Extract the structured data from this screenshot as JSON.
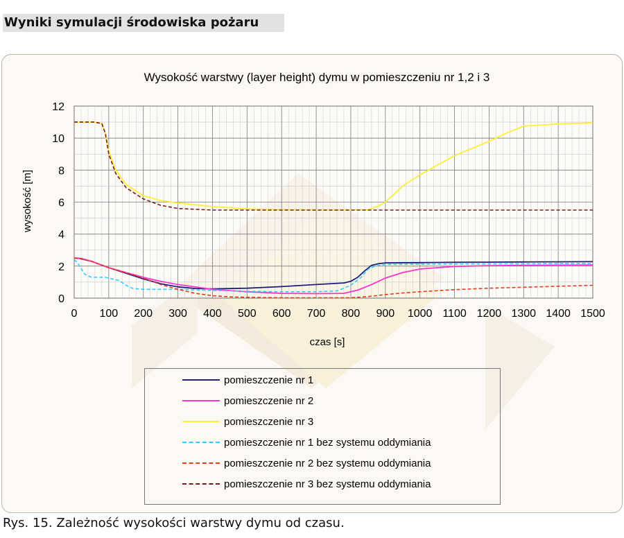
{
  "page": {
    "heading": "Wyniki symulacji środowiska pożaru",
    "caption": "Rys. 15. Zależność wysokości warstwy dymu od czasu."
  },
  "chart_data": {
    "type": "line",
    "title": "Wysokość warstwy (layer height) dymu w pomieszczeniu nr 1,2 i 3",
    "xlabel": "czas [s]",
    "ylabel": "wysokość [m]",
    "xlim": [
      0,
      1500
    ],
    "ylim": [
      0,
      12
    ],
    "xticks": [
      0,
      100,
      200,
      300,
      400,
      500,
      600,
      700,
      800,
      900,
      1000,
      1100,
      1200,
      1300,
      1400,
      1500
    ],
    "yticks": [
      0,
      2,
      4,
      6,
      8,
      10,
      12
    ],
    "grid": "on",
    "legend_placement": "bottom",
    "series": [
      {
        "name": "pomieszczenie nr 1",
        "color": "#1f1f7a",
        "dash": "solid",
        "points": [
          [
            0,
            2.5
          ],
          [
            10,
            2.5
          ],
          [
            50,
            2.3
          ],
          [
            100,
            1.9
          ],
          [
            150,
            1.55
          ],
          [
            200,
            1.2
          ],
          [
            250,
            0.9
          ],
          [
            300,
            0.7
          ],
          [
            350,
            0.6
          ],
          [
            400,
            0.58
          ],
          [
            500,
            0.62
          ],
          [
            600,
            0.72
          ],
          [
            700,
            0.85
          ],
          [
            780,
            0.95
          ],
          [
            800,
            1.05
          ],
          [
            820,
            1.3
          ],
          [
            840,
            1.7
          ],
          [
            860,
            2.05
          ],
          [
            880,
            2.15
          ],
          [
            900,
            2.2
          ],
          [
            1000,
            2.22
          ],
          [
            1100,
            2.24
          ],
          [
            1200,
            2.25
          ],
          [
            1300,
            2.26
          ],
          [
            1400,
            2.27
          ],
          [
            1500,
            2.28
          ]
        ]
      },
      {
        "name": "pomieszczenie nr 2",
        "color": "#ff33cc",
        "dash": "solid",
        "points": [
          [
            0,
            2.5
          ],
          [
            20,
            2.48
          ],
          [
            50,
            2.3
          ],
          [
            100,
            1.9
          ],
          [
            150,
            1.6
          ],
          [
            200,
            1.3
          ],
          [
            250,
            1.05
          ],
          [
            300,
            0.85
          ],
          [
            400,
            0.55
          ],
          [
            500,
            0.4
          ],
          [
            600,
            0.3
          ],
          [
            700,
            0.28
          ],
          [
            780,
            0.3
          ],
          [
            820,
            0.5
          ],
          [
            860,
            0.85
          ],
          [
            900,
            1.25
          ],
          [
            950,
            1.6
          ],
          [
            1000,
            1.82
          ],
          [
            1100,
            1.98
          ],
          [
            1200,
            2.03
          ],
          [
            1300,
            2.05
          ],
          [
            1400,
            2.06
          ],
          [
            1500,
            2.07
          ]
        ]
      },
      {
        "name": "pomieszczenie nr 3",
        "color": "#ffee33",
        "dash": "solid",
        "points": [
          [
            0,
            11
          ],
          [
            60,
            11
          ],
          [
            80,
            10.9
          ],
          [
            90,
            10.3
          ],
          [
            100,
            9.2
          ],
          [
            120,
            8.0
          ],
          [
            150,
            7.1
          ],
          [
            200,
            6.4
          ],
          [
            250,
            6.1
          ],
          [
            300,
            5.95
          ],
          [
            400,
            5.72
          ],
          [
            500,
            5.58
          ],
          [
            600,
            5.52
          ],
          [
            700,
            5.5
          ],
          [
            800,
            5.5
          ],
          [
            850,
            5.52
          ],
          [
            880,
            5.75
          ],
          [
            900,
            6.0
          ],
          [
            920,
            6.4
          ],
          [
            950,
            7.0
          ],
          [
            1000,
            7.7
          ],
          [
            1050,
            8.3
          ],
          [
            1100,
            8.9
          ],
          [
            1150,
            9.35
          ],
          [
            1200,
            9.8
          ],
          [
            1250,
            10.3
          ],
          [
            1300,
            10.75
          ],
          [
            1400,
            10.88
          ],
          [
            1500,
            10.95
          ]
        ]
      },
      {
        "name": "pomieszczenie nr 1 bez systemu oddymiania",
        "color": "#33ccff",
        "dash": "dashed",
        "points": [
          [
            0,
            2.4
          ],
          [
            10,
            2.2
          ],
          [
            30,
            1.5
          ],
          [
            50,
            1.3
          ],
          [
            70,
            1.3
          ],
          [
            90,
            1.3
          ],
          [
            110,
            1.2
          ],
          [
            130,
            1.1
          ],
          [
            150,
            0.8
          ],
          [
            170,
            0.6
          ],
          [
            200,
            0.55
          ],
          [
            300,
            0.55
          ],
          [
            400,
            0.48
          ],
          [
            500,
            0.43
          ],
          [
            600,
            0.4
          ],
          [
            700,
            0.4
          ],
          [
            760,
            0.45
          ],
          [
            800,
            0.8
          ],
          [
            830,
            1.3
          ],
          [
            850,
            1.8
          ],
          [
            870,
            2.0
          ],
          [
            900,
            2.1
          ],
          [
            1000,
            2.12
          ],
          [
            1100,
            2.13
          ],
          [
            1200,
            2.14
          ],
          [
            1300,
            2.15
          ],
          [
            1400,
            2.16
          ],
          [
            1500,
            2.17
          ]
        ]
      },
      {
        "name": "pomieszczenie nr 2 bez systemu oddymiania",
        "color": "#e83a1a",
        "dash": "dashed",
        "points": [
          [
            0,
            2.5
          ],
          [
            20,
            2.48
          ],
          [
            50,
            2.3
          ],
          [
            100,
            1.9
          ],
          [
            150,
            1.6
          ],
          [
            200,
            1.25
          ],
          [
            250,
            0.85
          ],
          [
            300,
            0.55
          ],
          [
            350,
            0.3
          ],
          [
            400,
            0.15
          ],
          [
            450,
            0.08
          ],
          [
            500,
            0.05
          ],
          [
            600,
            0.02
          ],
          [
            700,
            0.02
          ],
          [
            800,
            0.02
          ],
          [
            850,
            0.1
          ],
          [
            900,
            0.22
          ],
          [
            950,
            0.32
          ],
          [
            1000,
            0.4
          ],
          [
            1100,
            0.53
          ],
          [
            1200,
            0.62
          ],
          [
            1300,
            0.68
          ],
          [
            1400,
            0.74
          ],
          [
            1500,
            0.8
          ]
        ]
      },
      {
        "name": "pomieszczenie nr 3 bez systemu oddymiania",
        "color": "#7a1a1a",
        "dash": "dashed",
        "points": [
          [
            0,
            11
          ],
          [
            60,
            11
          ],
          [
            80,
            10.9
          ],
          [
            90,
            10.3
          ],
          [
            100,
            9.0
          ],
          [
            120,
            7.8
          ],
          [
            150,
            6.9
          ],
          [
            200,
            6.2
          ],
          [
            250,
            5.8
          ],
          [
            300,
            5.6
          ],
          [
            400,
            5.5
          ],
          [
            500,
            5.5
          ],
          [
            600,
            5.5
          ],
          [
            700,
            5.5
          ],
          [
            800,
            5.5
          ],
          [
            900,
            5.5
          ],
          [
            1000,
            5.5
          ],
          [
            1100,
            5.5
          ],
          [
            1200,
            5.5
          ],
          [
            1300,
            5.5
          ],
          [
            1400,
            5.5
          ],
          [
            1500,
            5.5
          ]
        ]
      }
    ]
  }
}
